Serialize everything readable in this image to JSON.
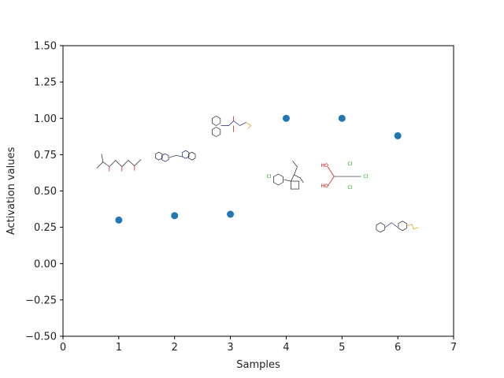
{
  "chart_data": {
    "type": "scatter",
    "xlabel": "Samples",
    "ylabel": "Activation values",
    "xlim": [
      0,
      7
    ],
    "ylim": [
      -0.5,
      1.5
    ],
    "xticks": [
      "0",
      "1",
      "2",
      "3",
      "4",
      "5",
      "6",
      "7"
    ],
    "yticks": [
      "−0.50",
      "−0.25",
      "0.00",
      "0.25",
      "0.50",
      "0.75",
      "1.00",
      "1.25",
      "1.50"
    ],
    "grid": false,
    "marker_color": "#1f77b4",
    "points": [
      {
        "x": 1,
        "y": 0.3
      },
      {
        "x": 2,
        "y": 0.33
      },
      {
        "x": 3,
        "y": 0.34
      },
      {
        "x": 4,
        "y": 1.0
      },
      {
        "x": 5,
        "y": 1.0
      },
      {
        "x": 6,
        "y": 0.88
      }
    ],
    "annotations": [
      {
        "type": "molecule-image",
        "x": 1,
        "y": 0.7,
        "labels": []
      },
      {
        "type": "molecule-image",
        "x": 2,
        "y": 0.74,
        "labels": []
      },
      {
        "type": "molecule-image",
        "x": 3,
        "y": 0.95,
        "labels": []
      },
      {
        "type": "molecule-image",
        "x": 4,
        "y": 0.6,
        "labels": [
          "Cl"
        ]
      },
      {
        "type": "molecule-image",
        "x": 5,
        "y": 0.6,
        "labels": [
          "HO",
          "HO",
          "Cl",
          "Cl",
          "Cl"
        ]
      },
      {
        "type": "molecule-image",
        "x": 6,
        "y": 0.26,
        "labels": []
      }
    ]
  }
}
